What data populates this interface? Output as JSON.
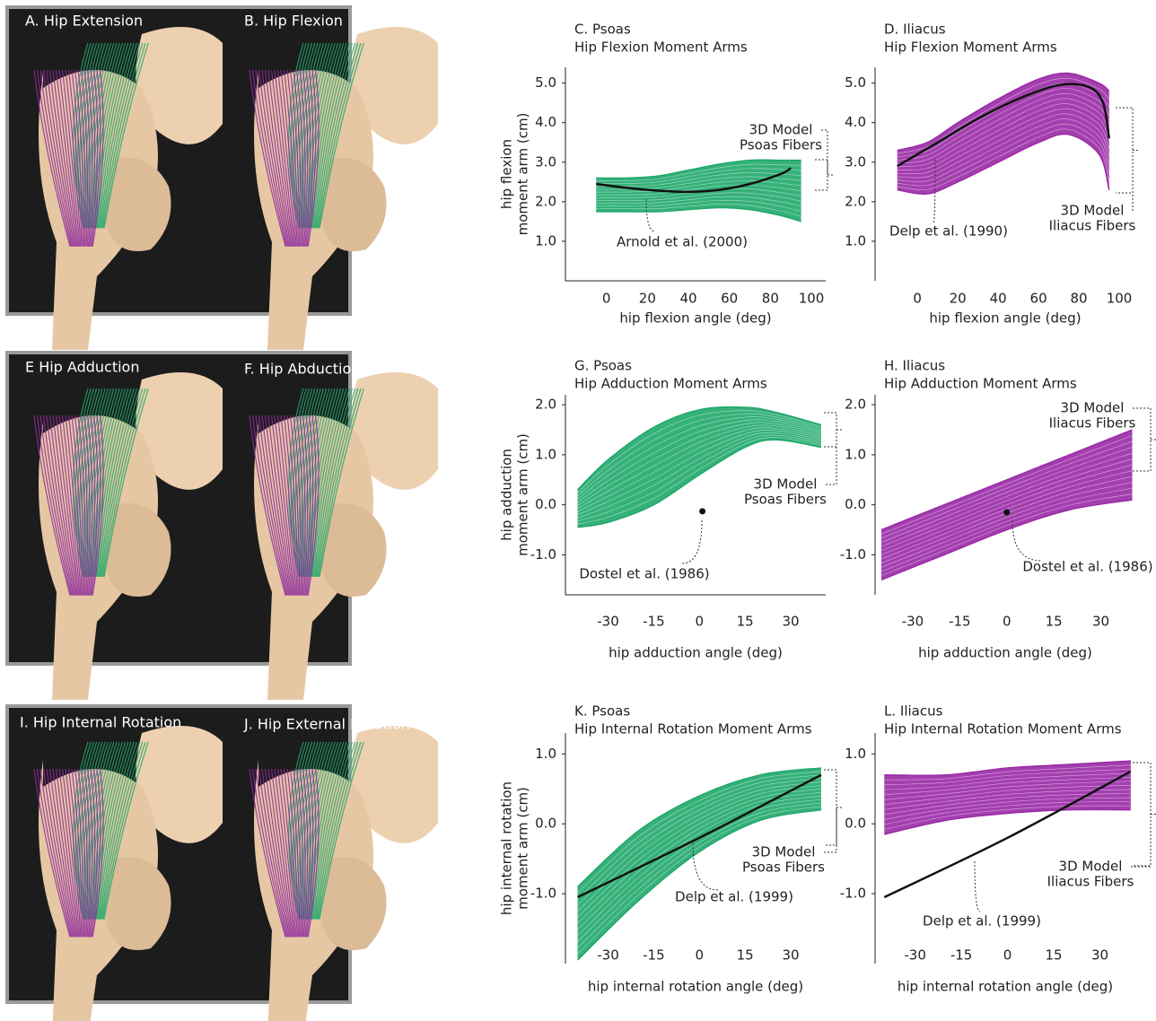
{
  "panels": [
    {
      "left": "A. Hip Extension",
      "right": "B. Hip Flexion"
    },
    {
      "left": "E Hip Adduction",
      "right": "F. Hip Abduction"
    },
    {
      "left": "I. Hip Internal Rotation",
      "right": "J. Hip External Rotation"
    }
  ],
  "chart_data": [
    {
      "type": "line",
      "title": "C. Psoas",
      "subtitle": "Hip Flexion Moment Arms",
      "x_label": "hip flexion angle (deg)",
      "y_label": [
        "hip flexion",
        "moment arm (cm)"
      ],
      "xlim": [
        -20,
        107
      ],
      "ylim": [
        0,
        5.4
      ],
      "xticks": [
        0,
        20,
        40,
        60,
        80,
        100
      ],
      "yticks": [
        {
          "value": 1,
          "label": "1.0"
        },
        {
          "value": 2,
          "label": "2.0"
        },
        {
          "value": 3,
          "label": "3.0"
        },
        {
          "value": 4,
          "label": "4.0"
        },
        {
          "value": 5,
          "label": "5.0"
        }
      ],
      "fibers": {
        "label": [
          "3D Model",
          "Psoas Fibers"
        ],
        "color": "#1fa86a",
        "x": [
          -5,
          10,
          25,
          40,
          55,
          70,
          85,
          95
        ],
        "upper": [
          2.6,
          2.6,
          2.65,
          2.8,
          2.95,
          3.05,
          3.05,
          3.05
        ],
        "lower": [
          1.75,
          1.75,
          1.75,
          1.8,
          1.85,
          1.8,
          1.65,
          1.5
        ]
      },
      "reference": {
        "label": "Arnold et al. (2000)",
        "color": "#111111",
        "x": [
          -5,
          10,
          25,
          40,
          55,
          70,
          85,
          90
        ],
        "values": [
          2.45,
          2.35,
          2.28,
          2.25,
          2.3,
          2.45,
          2.7,
          2.85
        ]
      }
    },
    {
      "type": "line",
      "title": "D. Iliacus",
      "subtitle": "Hip Flexion Moment Arms",
      "x_label": "hip flexion angle (deg)",
      "xlim": [
        -21,
        108
      ],
      "ylim": [
        0,
        5.4
      ],
      "xticks": [
        0,
        20,
        40,
        60,
        80,
        100
      ],
      "yticks": [
        {
          "value": 1,
          "label": "1.0"
        },
        {
          "value": 2,
          "label": "2.0"
        },
        {
          "value": 3,
          "label": "3.0"
        },
        {
          "value": 4,
          "label": "4.0"
        },
        {
          "value": 5,
          "label": "5.0"
        }
      ],
      "fibers": {
        "label": [
          "3D Model",
          "Iliacus Fibers"
        ],
        "color": "#9a2aa6",
        "x": [
          -10,
          5,
          20,
          40,
          60,
          75,
          90,
          95
        ],
        "upper": [
          3.3,
          3.5,
          4.0,
          4.6,
          5.1,
          5.25,
          5.0,
          4.8
        ],
        "lower": [
          2.3,
          2.2,
          2.5,
          3.0,
          3.5,
          3.7,
          3.2,
          2.3
        ]
      },
      "reference": {
        "label": "Delp et al. (1990)",
        "color": "#111111",
        "x": [
          -10,
          10,
          30,
          50,
          70,
          85,
          92,
          95
        ],
        "values": [
          2.9,
          3.5,
          4.1,
          4.6,
          4.95,
          4.9,
          4.5,
          3.6
        ]
      }
    },
    {
      "type": "line",
      "title": "G. Psoas",
      "subtitle": "Hip Adduction Moment Arms",
      "x_label": "hip adduction angle (deg)",
      "y_label": [
        "hip  adduction",
        "moment arm (cm)"
      ],
      "xlim": [
        -44,
        41.5
      ],
      "ylim": [
        -1.8,
        2.2
      ],
      "xticks": [
        -30,
        -15,
        0,
        15,
        30
      ],
      "yticks": [
        {
          "value": -1,
          "label": "-1.0"
        },
        {
          "value": 0,
          "label": "0.0"
        },
        {
          "value": 1,
          "label": "1.0"
        },
        {
          "value": 2,
          "label": "2.0"
        }
      ],
      "fibers": {
        "label": [
          "3D Model",
          "Psoas Fibers"
        ],
        "color": "#1fa86a",
        "x": [
          -40,
          -30,
          -15,
          0,
          15,
          25,
          40
        ],
        "upper": [
          0.3,
          0.9,
          1.55,
          1.9,
          1.95,
          1.85,
          1.6
        ],
        "lower": [
          -0.45,
          -0.35,
          0,
          0.6,
          1.15,
          1.3,
          1.15
        ]
      },
      "reference": {
        "label": "Dostel et al. (1986)",
        "color": "#111111",
        "x": [
          1
        ],
        "values": [
          -0.13
        ]
      }
    },
    {
      "type": "line",
      "title": "H. Iliacus",
      "subtitle": "Hip Adduction Moment Arms",
      "x_label": "hip adduction angle (deg)",
      "xlim": [
        -42,
        41
      ],
      "ylim": [
        -1.8,
        2.2
      ],
      "xticks": [
        -30,
        -15,
        0,
        15,
        30
      ],
      "yticks": [
        {
          "value": -1,
          "label": "-1.0"
        },
        {
          "value": 0,
          "label": "0.0"
        },
        {
          "value": 1,
          "label": "1.0"
        },
        {
          "value": 2,
          "label": "2.0"
        }
      ],
      "fibers": {
        "label": [
          "3D Model",
          "Iliacus Fibers"
        ],
        "color": "#9a2aa6",
        "x": [
          -40,
          -20,
          0,
          20,
          40
        ],
        "upper": [
          -0.5,
          0,
          0.5,
          1.0,
          1.5
        ],
        "lower": [
          -1.5,
          -1.0,
          -0.5,
          -0.1,
          0.1
        ]
      },
      "reference": {
        "label": "Dostel et al. (1986)",
        "color": "#111111",
        "x": [
          0
        ],
        "values": [
          -0.15
        ]
      }
    },
    {
      "type": "line",
      "title": "K. Psoas",
      "subtitle": "Hip Internal Rotation Moment Arms",
      "x_label": "hip internal rotation angle (deg)",
      "y_label": [
        "hip internal rotation",
        "moment arm (cm)"
      ],
      "xlim": [
        -44,
        41.5
      ],
      "ylim": [
        -2.0,
        1.3
      ],
      "xticks": [
        -30,
        -15,
        0,
        15,
        30
      ],
      "yticks": [
        {
          "value": -1,
          "label": "-1.0"
        },
        {
          "value": 0,
          "label": "0.0"
        },
        {
          "value": 1,
          "label": "1.0"
        }
      ],
      "fibers": {
        "label": [
          "3D Model",
          "Psoas Fibers"
        ],
        "color": "#1fa86a",
        "x": [
          -40,
          -20,
          0,
          20,
          40
        ],
        "upper": [
          -0.9,
          -0.1,
          0.4,
          0.7,
          0.8
        ],
        "lower": [
          -1.95,
          -1.1,
          -0.4,
          0.05,
          0.2
        ]
      },
      "reference": {
        "label": "Delp et al. (1999)",
        "color": "#111111",
        "x": [
          -40,
          0,
          40
        ],
        "values": [
          -1.05,
          -0.2,
          0.7
        ]
      }
    },
    {
      "type": "line",
      "title": "L. Iliacus",
      "subtitle": "Hip Internal Rotation Moment Arms",
      "x_label": "hip internal rotation angle (deg)",
      "xlim": [
        -43,
        41.5
      ],
      "ylim": [
        -2.0,
        1.3
      ],
      "xticks": [
        -30,
        -15,
        0,
        15,
        30
      ],
      "yticks": [
        {
          "value": -1,
          "label": "-1.0"
        },
        {
          "value": 0,
          "label": "0.0"
        },
        {
          "value": 1,
          "label": "1.0"
        }
      ],
      "fibers": {
        "label": [
          "3D Model",
          "Iliacus Fibers"
        ],
        "color": "#9a2aa6",
        "x": [
          -40,
          -20,
          0,
          20,
          40
        ],
        "upper": [
          0.7,
          0.7,
          0.8,
          0.85,
          0.9
        ],
        "lower": [
          -0.15,
          0.05,
          0.15,
          0.2,
          0.2
        ]
      },
      "reference": {
        "label": "Delp et al. (1999)",
        "color": "#111111",
        "x": [
          -40,
          0,
          40
        ],
        "values": [
          -1.05,
          -0.2,
          0.75
        ]
      }
    }
  ]
}
